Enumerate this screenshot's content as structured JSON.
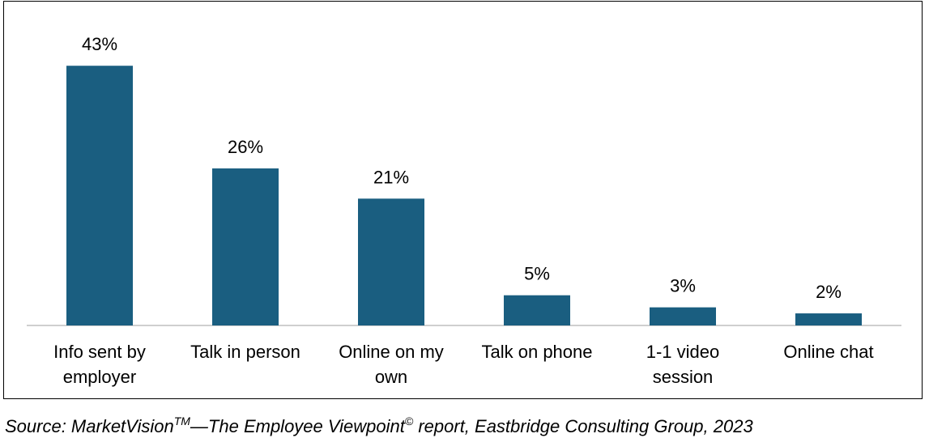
{
  "chart_data": {
    "type": "bar",
    "categories": [
      "Info sent by employer",
      "Talk in person",
      "Online on my own",
      "Talk on phone",
      "1-1 video session",
      "Online chat"
    ],
    "values": [
      43,
      26,
      21,
      5,
      3,
      2
    ],
    "value_labels": [
      "43%",
      "26%",
      "21%",
      "5%",
      "3%",
      "2%"
    ],
    "color": "#1a5e80",
    "source": [
      "Source: MarketVision",
      "TM",
      "—The Employee Viewpoint",
      "©",
      " report, Eastbridge Consulting Group, 2023"
    ]
  }
}
